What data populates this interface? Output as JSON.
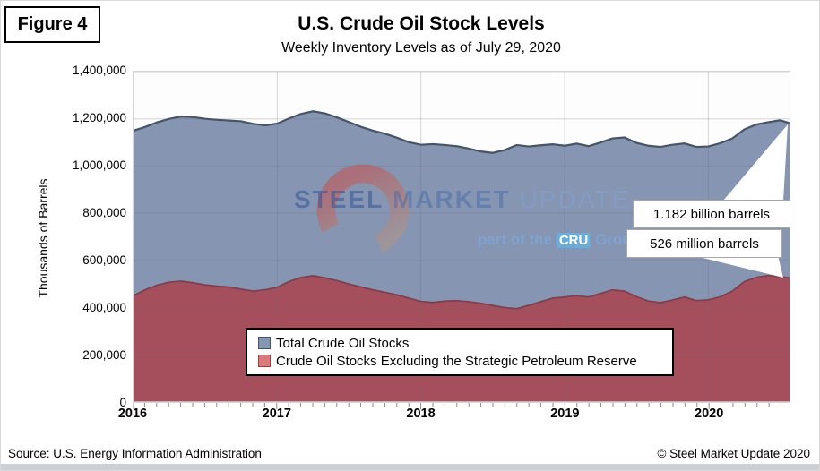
{
  "figure_label": "Figure 4",
  "watermark": {
    "steel": "STEEL",
    "market": "MARKET",
    "update": "UPDATE",
    "part_of_the": "part of the",
    "cru": "CRU",
    "group": "Group"
  },
  "footer": {
    "source": "Source: U.S. Energy Information Administration",
    "copyright": "© Steel Market Update 2020"
  },
  "chart_data": {
    "type": "area",
    "title": "U.S. Crude Oil Stock Levels",
    "subtitle": "Weekly Inventory Levels as of July 29, 2020",
    "ylabel": "Thousands of Barrels",
    "ylim": [
      0,
      1400000
    ],
    "x_range": [
      2016.0,
      2020.565
    ],
    "grid": true,
    "legend_position": "bottom-center-inside",
    "y_ticks": [
      {
        "value": 1400000,
        "label": "1,400,000"
      },
      {
        "value": 1200000,
        "label": "1,200,000"
      },
      {
        "value": 1000000,
        "label": "1,000,000"
      },
      {
        "value": 800000,
        "label": "800,000"
      },
      {
        "value": 600000,
        "label": "600,000"
      },
      {
        "value": 400000,
        "label": "400,000"
      },
      {
        "value": 200000,
        "label": "200,000"
      },
      {
        "value": 0,
        "label": "0"
      }
    ],
    "x_ticks": [
      {
        "value": 2016,
        "label": "2016"
      },
      {
        "value": 2017,
        "label": "2017"
      },
      {
        "value": 2018,
        "label": "2018"
      },
      {
        "value": 2019,
        "label": "2019"
      },
      {
        "value": 2020,
        "label": "2020"
      }
    ],
    "x": [
      2016.0,
      2016.083,
      2016.167,
      2016.25,
      2016.333,
      2016.417,
      2016.5,
      2016.583,
      2016.667,
      2016.75,
      2016.833,
      2016.917,
      2017.0,
      2017.083,
      2017.167,
      2017.25,
      2017.333,
      2017.417,
      2017.5,
      2017.583,
      2017.667,
      2017.75,
      2017.833,
      2017.917,
      2018.0,
      2018.083,
      2018.167,
      2018.25,
      2018.333,
      2018.417,
      2018.5,
      2018.583,
      2018.667,
      2018.75,
      2018.833,
      2018.917,
      2019.0,
      2019.083,
      2019.167,
      2019.25,
      2019.333,
      2019.417,
      2019.5,
      2019.583,
      2019.667,
      2019.75,
      2019.833,
      2019.917,
      2020.0,
      2020.083,
      2020.167,
      2020.25,
      2020.333,
      2020.417,
      2020.5,
      2020.565
    ],
    "series": [
      {
        "name": "Total Crude Oil Stocks",
        "fill": "#8595b2",
        "line": "#44546a",
        "legend_swatch": "#8496b0",
        "legend_swatch_border": "#44546a",
        "values": [
          1150000,
          1166000,
          1186000,
          1200000,
          1210000,
          1207000,
          1200000,
          1196000,
          1193000,
          1190000,
          1179000,
          1172000,
          1180000,
          1202000,
          1221000,
          1232000,
          1223000,
          1206000,
          1186000,
          1166000,
          1150000,
          1137000,
          1120000,
          1101000,
          1090000,
          1093000,
          1089000,
          1084000,
          1074000,
          1062000,
          1056000,
          1068000,
          1089000,
          1083000,
          1088000,
          1092000,
          1086000,
          1095000,
          1084000,
          1100000,
          1117000,
          1121000,
          1098000,
          1086000,
          1081000,
          1090000,
          1096000,
          1081000,
          1083000,
          1097000,
          1117000,
          1155000,
          1176000,
          1186000,
          1194000,
          1182000
        ]
      },
      {
        "name": "Crude Oil Stocks Excluding the Strategic Petroleum Reserve",
        "fill": "#a54f5c",
        "line": "#8d3a47",
        "legend_swatch": "#dc7a7a",
        "legend_swatch_border": "#9c3c46",
        "values": [
          451000,
          476000,
          496000,
          508000,
          512000,
          505000,
          496000,
          491000,
          487000,
          478000,
          470000,
          476000,
          486000,
          511000,
          528000,
          535000,
          526000,
          514000,
          500000,
          487000,
          475000,
          465000,
          454000,
          440000,
          426000,
          422000,
          428000,
          430000,
          425000,
          418000,
          409000,
          400000,
          395000,
          410000,
          425000,
          440000,
          445000,
          451000,
          445000,
          460000,
          475000,
          470000,
          446000,
          428000,
          421000,
          432000,
          445000,
          430000,
          433000,
          446000,
          470000,
          510000,
          528000,
          536000,
          531000,
          526000
        ]
      }
    ],
    "annotations": [
      {
        "text": "1.182 billion barrels",
        "series": "Total Crude Oil Stocks",
        "x": 2020.565,
        "value": 1182000
      },
      {
        "text": "526 million barrels",
        "series": "Crude Oil Stocks Excluding the Strategic Petroleum Reserve",
        "x": 2020.565,
        "value": 526000
      }
    ]
  }
}
